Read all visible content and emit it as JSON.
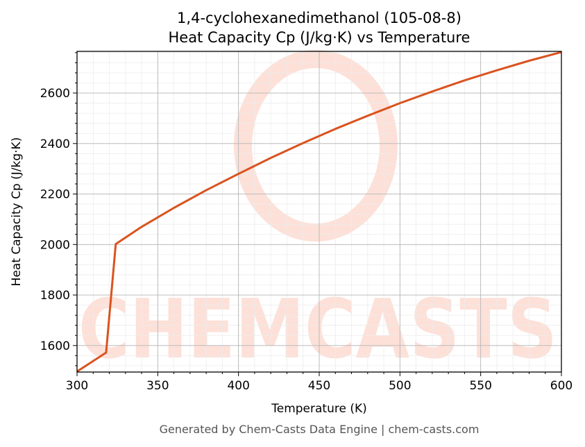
{
  "chart_data": {
    "type": "line",
    "title_line1": "1,4-cyclohexanedimethanol (105-08-8)",
    "title_line2": "Heat Capacity Cp (J/kg·K) vs Temperature",
    "xlabel": "Temperature (K)",
    "ylabel": "Heat Capacity Cp (J/kg·K)",
    "xlim": [
      300,
      600
    ],
    "ylim": [
      1495,
      2765
    ],
    "x_ticks": [
      300,
      350,
      400,
      450,
      500,
      550,
      600
    ],
    "y_ticks": [
      1600,
      1800,
      2000,
      2200,
      2400,
      2600
    ],
    "grid": true,
    "line_color": "#d9531e",
    "series": [
      {
        "x": [
          300,
          318,
          324,
          340,
          360,
          380,
          400,
          420,
          440,
          460,
          480,
          500,
          520,
          540,
          560,
          580,
          600
        ],
        "values": [
          1497,
          1572,
          2002,
          2070,
          2145,
          2215,
          2280,
          2343,
          2402,
          2458,
          2510,
          2560,
          2606,
          2650,
          2690,
          2728,
          2762
        ]
      }
    ]
  },
  "watermark": "CHEMCASTS",
  "footer": "Generated by Chem-Casts Data Engine | chem-casts.com"
}
